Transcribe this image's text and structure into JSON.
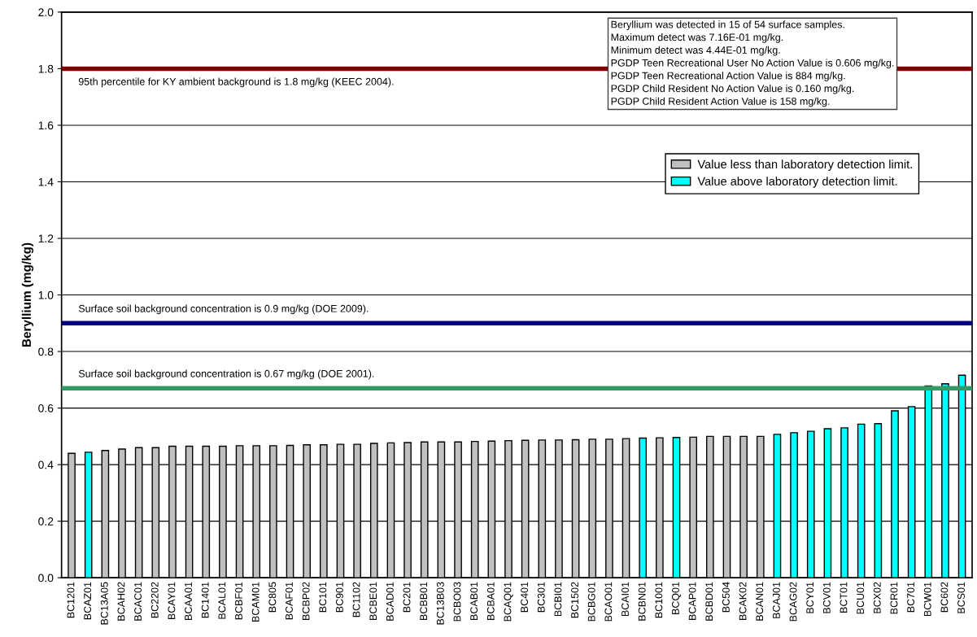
{
  "chart_data": {
    "type": "bar",
    "ylabel": "Beryllium (mg/kg)",
    "categories": [
      "BC1201",
      "BCAZ01",
      "BC13A05",
      "BCAH02",
      "BCAC01",
      "BC2202",
      "BCAY01",
      "BCAA01",
      "BC1401",
      "BCAL01",
      "BCBF01",
      "BCAM01",
      "BC805",
      "BCAF01",
      "BCBP02",
      "BC101",
      "BC901",
      "BC1102",
      "BCBE01",
      "BCAD01",
      "BC201",
      "BCBB01",
      "BC13B03",
      "BCBO03",
      "BCAB01",
      "BCBA01",
      "BCAQ01",
      "BC401",
      "BC301",
      "BCBI01",
      "BC1502",
      "BCBG01",
      "BCAO01",
      "BCAI01",
      "BCBN01",
      "BC1001",
      "BCQ01",
      "BCAP01",
      "BCBD01",
      "BC504",
      "BCAK02",
      "BCAN01",
      "BCAJ01",
      "BCAG02",
      "BCY01",
      "BCV01",
      "BCT01",
      "BCU01",
      "BCX02",
      "BCR01",
      "BC701",
      "BCW01",
      "BC602",
      "BCS01"
    ],
    "series": [
      {
        "name": "Value less than laboratory detection limit.",
        "color": "#c0c0c0",
        "values": [
          0.44,
          null,
          0.45,
          0.455,
          0.46,
          0.46,
          0.465,
          0.465,
          0.465,
          0.465,
          0.467,
          0.467,
          0.467,
          0.468,
          0.47,
          0.47,
          0.472,
          0.472,
          0.475,
          0.477,
          0.478,
          0.48,
          0.48,
          0.48,
          0.482,
          0.483,
          0.485,
          0.486,
          0.487,
          0.487,
          0.488,
          0.49,
          0.49,
          0.492,
          null,
          0.495,
          null,
          0.497,
          0.5,
          0.5,
          0.5,
          0.5,
          null,
          null,
          null,
          null,
          null,
          null,
          null,
          null,
          null,
          null,
          null,
          null
        ]
      },
      {
        "name": "Value above laboratory detection limit.",
        "color": "#00ffff",
        "values": [
          null,
          0.444,
          null,
          null,
          null,
          null,
          null,
          null,
          null,
          null,
          null,
          null,
          null,
          null,
          null,
          null,
          null,
          null,
          null,
          null,
          null,
          null,
          null,
          null,
          null,
          null,
          null,
          null,
          null,
          null,
          null,
          null,
          null,
          null,
          0.494,
          null,
          0.496,
          null,
          null,
          null,
          null,
          null,
          0.507,
          0.513,
          0.518,
          0.527,
          0.53,
          0.543,
          0.545,
          0.59,
          0.605,
          0.678,
          0.686,
          0.716
        ]
      }
    ],
    "ylim": [
      0,
      2.0
    ],
    "yticks": [
      {
        "value": 0,
        "label": "0.0"
      },
      0.2,
      0.4,
      0.6,
      0.8,
      {
        "value": 1.0,
        "label": "1.0"
      },
      1.2,
      1.4,
      1.6,
      1.8,
      {
        "value": 2.0,
        "label": "2.0"
      }
    ],
    "grid": "y",
    "legend": "top right",
    "ref_lines": [
      {
        "axis": "y",
        "value": 1.8,
        "label": "95th percentile for KY ambient background is 1.8 mg/kg (KEEC 2004).",
        "color": "#800000"
      },
      {
        "axis": "y",
        "value": 0.9,
        "label": "Surface soil background concentration is 0.9 mg/kg (DOE 2009).",
        "color": "#000080"
      },
      {
        "axis": "y",
        "value": 0.67,
        "label": "Surface soil background concentration is 0.67 mg/kg (DOE 2001).",
        "color": "#339966"
      }
    ],
    "annotations": [
      "Beryllium was detected in 15 of 54 surface samples.\nMaximum detect was 7.16E-01 mg/kg.\nMinimum detect was 4.44E-01 mg/kg.\nPGDP Teen Recreational User No Action Value is 0.606 mg/kg.\nPGDP Teen Recreational Action Value is 884 mg/kg.\nPGDP Child Resident No Action Value is 0.160 mg/kg.\nPGDP Child Resident Action Value is 158 mg/kg."
    ]
  }
}
